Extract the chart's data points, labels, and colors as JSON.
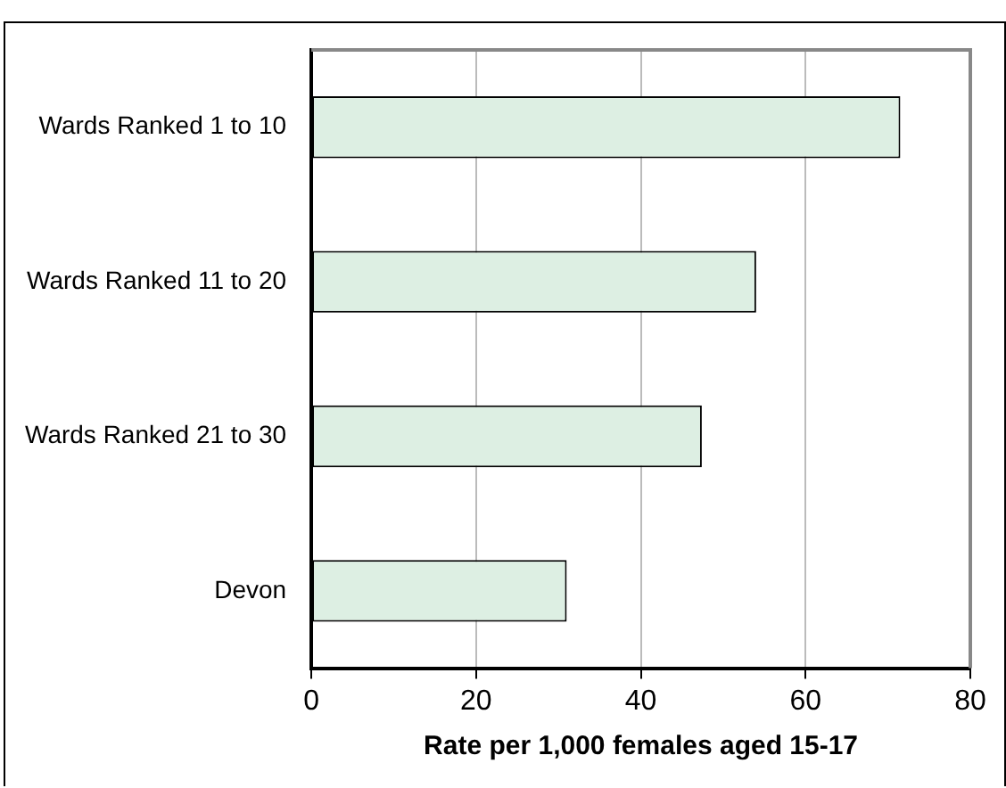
{
  "chart_data": {
    "type": "bar",
    "orientation": "horizontal",
    "categories": [
      "Wards Ranked 1 to 10",
      "Wards Ranked 11 to 20",
      "Wards Ranked 21 to 30",
      "Devon"
    ],
    "values": [
      71.5,
      54,
      47.4,
      31
    ],
    "color": "#ddefe3",
    "xlim": [
      0,
      80
    ],
    "xticks": [
      0,
      20,
      40,
      60,
      80
    ],
    "xlabel": "Rate per 1,000 females aged 15-17",
    "grid": "x",
    "legend": false
  }
}
